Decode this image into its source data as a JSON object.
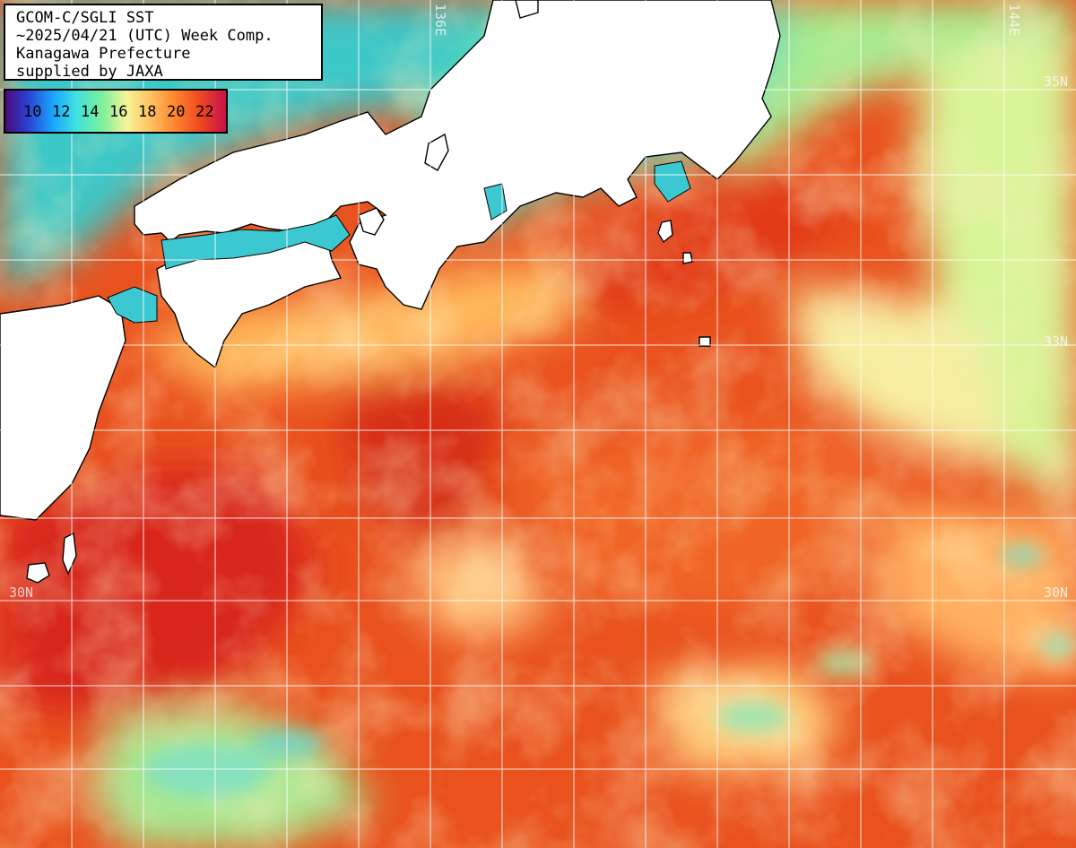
{
  "title": {
    "line1": "GCOM-C/SGLI SST",
    "line2": "~2025/04/21 (UTC) Week Comp.",
    "line3": "Kanagawa Prefecture",
    "line4": "supplied by JAXA"
  },
  "legend": {
    "ticks": [
      "10",
      "12",
      "14",
      "16",
      "18",
      "20",
      "22"
    ]
  },
  "grid_labels": {
    "lon_136": "136E",
    "lon_144": "144E",
    "lat_35_right": "35N",
    "lat_33_right": "33N",
    "lat_30_left": "30N",
    "lat_30_right": "30N"
  },
  "colors": {
    "land": "#ffffff",
    "coastline": "#000000",
    "grid": "#ffffff",
    "warm_sea": "#e2431a",
    "cool_sea": "#38c8d8"
  }
}
